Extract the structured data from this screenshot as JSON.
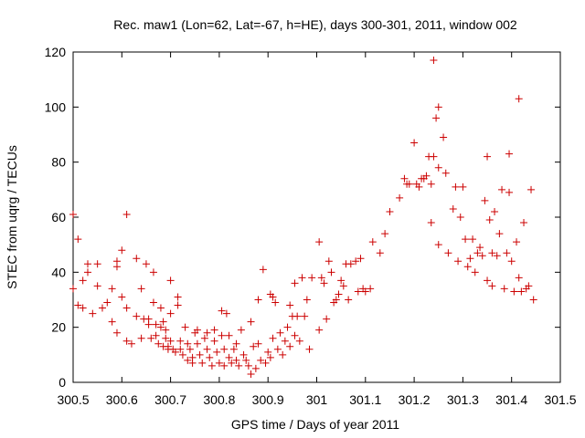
{
  "chart_data": {
    "type": "scatter",
    "title": "Rec. maw1 (Lon=62, Lat=-67, h=HE), days 300-301, 2011, window 002",
    "xlabel": "GPS time / Days of year 2011",
    "ylabel": "STEC from uqrg / TECUs",
    "xlim": [
      300.5,
      301.5
    ],
    "ylim": [
      0,
      120
    ],
    "xticks": [
      300.5,
      300.6,
      300.7,
      300.8,
      300.9,
      301,
      301.1,
      301.2,
      301.3,
      301.4,
      301.5
    ],
    "xtick_labels": [
      "300.5",
      "300.6",
      "300.7",
      "300.8",
      "300.9",
      "301",
      "301.1",
      "301.2",
      "301.3",
      "301.4",
      "301.5"
    ],
    "yticks": [
      0,
      20,
      40,
      60,
      80,
      100,
      120
    ],
    "ytick_labels": [
      "0",
      "20",
      "40",
      "60",
      "80",
      "100",
      "120"
    ],
    "grid": false,
    "legend": "none",
    "marker": "+",
    "color": "#cc0000",
    "points": [
      [
        300.5,
        61
      ],
      [
        300.5,
        34
      ],
      [
        300.51,
        28
      ],
      [
        300.51,
        52
      ],
      [
        300.52,
        37
      ],
      [
        300.52,
        27
      ],
      [
        300.53,
        40
      ],
      [
        300.53,
        43
      ],
      [
        300.54,
        25
      ],
      [
        300.55,
        43
      ],
      [
        300.55,
        35
      ],
      [
        300.56,
        27
      ],
      [
        300.57,
        29
      ],
      [
        300.58,
        34
      ],
      [
        300.58,
        22
      ],
      [
        300.59,
        42
      ],
      [
        300.59,
        44
      ],
      [
        300.59,
        18
      ],
      [
        300.6,
        48
      ],
      [
        300.6,
        31
      ],
      [
        300.61,
        15
      ],
      [
        300.61,
        61
      ],
      [
        300.61,
        27
      ],
      [
        300.62,
        14
      ],
      [
        300.63,
        45
      ],
      [
        300.63,
        24
      ],
      [
        300.64,
        34
      ],
      [
        300.64,
        16
      ],
      [
        300.645,
        23
      ],
      [
        300.65,
        43
      ],
      [
        300.655,
        23
      ],
      [
        300.655,
        21
      ],
      [
        300.66,
        16
      ],
      [
        300.665,
        40
      ],
      [
        300.665,
        29
      ],
      [
        300.67,
        21
      ],
      [
        300.67,
        17
      ],
      [
        300.675,
        14
      ],
      [
        300.68,
        27
      ],
      [
        300.68,
        20
      ],
      [
        300.685,
        22
      ],
      [
        300.685,
        13
      ],
      [
        300.69,
        19
      ],
      [
        300.69,
        16
      ],
      [
        300.695,
        13
      ],
      [
        300.695,
        12
      ],
      [
        300.7,
        37
      ],
      [
        300.7,
        25
      ],
      [
        300.7,
        15
      ],
      [
        300.705,
        12
      ],
      [
        300.71,
        11
      ],
      [
        300.715,
        31
      ],
      [
        300.715,
        28
      ],
      [
        300.72,
        15
      ],
      [
        300.72,
        12
      ],
      [
        300.725,
        10
      ],
      [
        300.73,
        20
      ],
      [
        300.735,
        14
      ],
      [
        300.735,
        8
      ],
      [
        300.74,
        12
      ],
      [
        300.745,
        9
      ],
      [
        300.745,
        7
      ],
      [
        300.75,
        18
      ],
      [
        300.755,
        19
      ],
      [
        300.755,
        14
      ],
      [
        300.76,
        10
      ],
      [
        300.765,
        7
      ],
      [
        300.77,
        16
      ],
      [
        300.775,
        18
      ],
      [
        300.775,
        12
      ],
      [
        300.78,
        9
      ],
      [
        300.785,
        6
      ],
      [
        300.79,
        19
      ],
      [
        300.79,
        15
      ],
      [
        300.795,
        11
      ],
      [
        300.8,
        7
      ],
      [
        300.805,
        26
      ],
      [
        300.805,
        17
      ],
      [
        300.81,
        12
      ],
      [
        300.81,
        6
      ],
      [
        300.815,
        25
      ],
      [
        300.82,
        17
      ],
      [
        300.82,
        9
      ],
      [
        300.825,
        7
      ],
      [
        300.83,
        12
      ],
      [
        300.835,
        14
      ],
      [
        300.835,
        8
      ],
      [
        300.84,
        6
      ],
      [
        300.845,
        19
      ],
      [
        300.85,
        10
      ],
      [
        300.855,
        8
      ],
      [
        300.86,
        6
      ],
      [
        300.865,
        22
      ],
      [
        300.865,
        3
      ],
      [
        300.87,
        13
      ],
      [
        300.875,
        5
      ],
      [
        300.88,
        30
      ],
      [
        300.88,
        14
      ],
      [
        300.885,
        8
      ],
      [
        300.89,
        41
      ],
      [
        300.895,
        7
      ],
      [
        300.9,
        11
      ],
      [
        300.905,
        32
      ],
      [
        300.905,
        9
      ],
      [
        300.91,
        31
      ],
      [
        300.91,
        16
      ],
      [
        300.915,
        29
      ],
      [
        300.92,
        12
      ],
      [
        300.925,
        18
      ],
      [
        300.93,
        10
      ],
      [
        300.935,
        15
      ],
      [
        300.94,
        20
      ],
      [
        300.945,
        28
      ],
      [
        300.945,
        13
      ],
      [
        300.95,
        24
      ],
      [
        300.955,
        36
      ],
      [
        300.955,
        17
      ],
      [
        300.96,
        24
      ],
      [
        300.965,
        15
      ],
      [
        300.97,
        38
      ],
      [
        300.975,
        24
      ],
      [
        300.98,
        30
      ],
      [
        300.985,
        12
      ],
      [
        300.99,
        38
      ],
      [
        301.005,
        51
      ],
      [
        301.005,
        19
      ],
      [
        301.01,
        38
      ],
      [
        301.015,
        36
      ],
      [
        301.02,
        23
      ],
      [
        301.025,
        44
      ],
      [
        301.03,
        40
      ],
      [
        301.035,
        29
      ],
      [
        301.04,
        30
      ],
      [
        301.045,
        32
      ],
      [
        301.05,
        37
      ],
      [
        301.055,
        35
      ],
      [
        301.06,
        43
      ],
      [
        301.065,
        30
      ],
      [
        301.07,
        43
      ],
      [
        301.08,
        44
      ],
      [
        301.085,
        33
      ],
      [
        301.09,
        45
      ],
      [
        301.095,
        34
      ],
      [
        301.1,
        33
      ],
      [
        301.11,
        34
      ],
      [
        301.115,
        51
      ],
      [
        301.13,
        47
      ],
      [
        301.14,
        54
      ],
      [
        301.15,
        62
      ],
      [
        301.17,
        67
      ],
      [
        301.18,
        74
      ],
      [
        301.185,
        72
      ],
      [
        301.19,
        72
      ],
      [
        301.2,
        87
      ],
      [
        301.205,
        72
      ],
      [
        301.21,
        71
      ],
      [
        301.215,
        74
      ],
      [
        301.22,
        74
      ],
      [
        301.225,
        75
      ],
      [
        301.23,
        82
      ],
      [
        301.235,
        72
      ],
      [
        301.235,
        58
      ],
      [
        301.24,
        117
      ],
      [
        301.24,
        82
      ],
      [
        301.245,
        96
      ],
      [
        301.25,
        100
      ],
      [
        301.25,
        78
      ],
      [
        301.25,
        50
      ],
      [
        301.26,
        89
      ],
      [
        301.265,
        76
      ],
      [
        301.27,
        47
      ],
      [
        301.28,
        63
      ],
      [
        301.285,
        71
      ],
      [
        301.29,
        44
      ],
      [
        301.295,
        60
      ],
      [
        301.3,
        71
      ],
      [
        301.305,
        52
      ],
      [
        301.31,
        42
      ],
      [
        301.315,
        45
      ],
      [
        301.32,
        52
      ],
      [
        301.325,
        40
      ],
      [
        301.33,
        47
      ],
      [
        301.335,
        49
      ],
      [
        301.34,
        46
      ],
      [
        301.345,
        66
      ],
      [
        301.35,
        82
      ],
      [
        301.35,
        37
      ],
      [
        301.355,
        59
      ],
      [
        301.36,
        47
      ],
      [
        301.36,
        35
      ],
      [
        301.365,
        62
      ],
      [
        301.37,
        46
      ],
      [
        301.375,
        54
      ],
      [
        301.38,
        70
      ],
      [
        301.385,
        34
      ],
      [
        301.39,
        47
      ],
      [
        301.395,
        83
      ],
      [
        301.395,
        69
      ],
      [
        301.4,
        44
      ],
      [
        301.405,
        33
      ],
      [
        301.41,
        51
      ],
      [
        301.415,
        103
      ],
      [
        301.415,
        38
      ],
      [
        301.42,
        33
      ],
      [
        301.425,
        58
      ],
      [
        301.43,
        34
      ],
      [
        301.435,
        35
      ],
      [
        301.44,
        70
      ],
      [
        301.445,
        30
      ]
    ]
  }
}
